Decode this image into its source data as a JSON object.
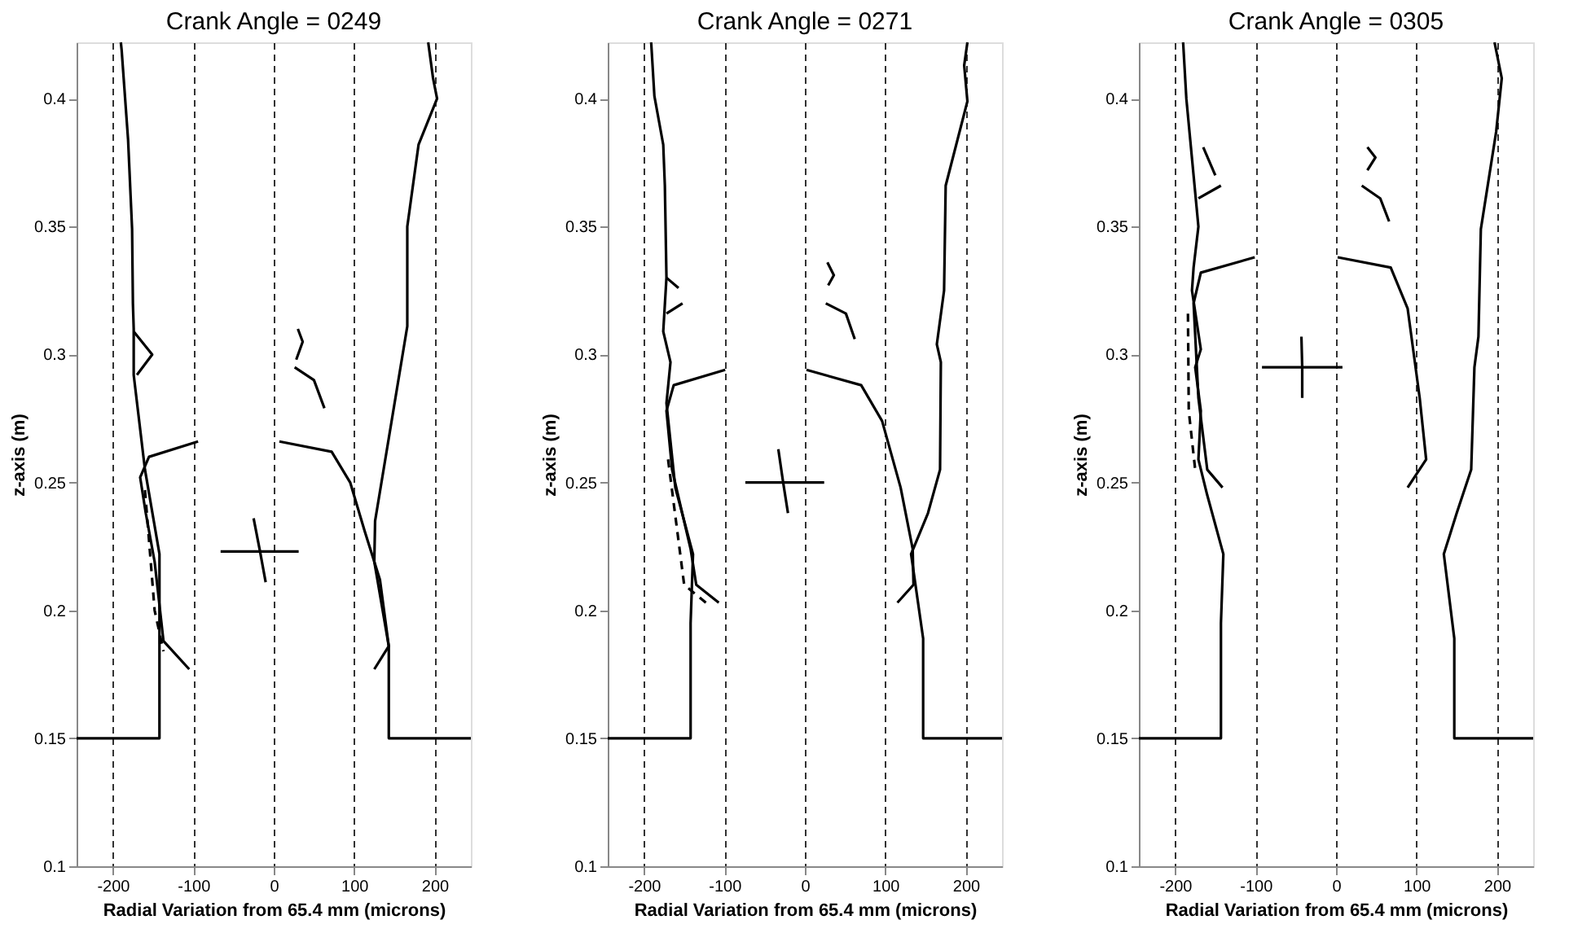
{
  "chart_data": [
    {
      "type": "line",
      "title": "Crank Angle = 0249",
      "xlabel": "Radial Variation from 65.4 mm (microns)",
      "ylabel": "z-axis (m)",
      "xlim": [
        -245,
        245
      ],
      "ylim": [
        0.1,
        0.422
      ],
      "xticks": [
        -200,
        -100,
        0,
        100,
        200
      ],
      "yticks": [
        0.1,
        0.15,
        0.2,
        0.25,
        0.3,
        0.35,
        0.4
      ],
      "grid": "x",
      "legend": false,
      "marker": "none",
      "series": [
        {
          "color": "#000000",
          "x": [
            -245,
            -142,
            -142,
            -160,
            -174,
            -174,
            -175,
            -176,
            -181,
            -189,
            -190
          ],
          "values": [
            0.15,
            0.15,
            0.222,
            0.255,
            0.292,
            0.31,
            0.32,
            0.349,
            0.384,
            0.419,
            0.422
          ]
        },
        {
          "color": "#000000",
          "x": [
            245,
            143,
            143,
            125,
            126,
            166,
            166,
            180,
            203,
            198,
            192
          ],
          "values": [
            0.15,
            0.15,
            0.186,
            0.219,
            0.235,
            0.311,
            0.35,
            0.382,
            0.4,
            0.408,
            0.422
          ]
        },
        {
          "color": "#000000",
          "x": [
            -94,
            -155,
            -166,
            -159,
            -148,
            -137,
            -105
          ],
          "values": [
            0.266,
            0.26,
            0.252,
            0.238,
            0.219,
            0.188,
            0.177
          ]
        },
        {
          "color": "#000000",
          "x": [
            7,
            72,
            95,
            113,
            132,
            143,
            125
          ],
          "values": [
            0.266,
            0.262,
            0.25,
            0.231,
            0.212,
            0.186,
            0.177
          ]
        },
        {
          "color": "#000000",
          "line_style": "dashed",
          "x": [
            -160,
            -148,
            -137
          ],
          "values": [
            0.247,
            0.2,
            0.184
          ]
        },
        {
          "color": "#000000",
          "x": [
            -174,
            -151,
            -170
          ],
          "values": [
            0.309,
            0.3,
            0.292
          ]
        },
        {
          "color": "#000000",
          "x": [
            30,
            36,
            28
          ],
          "values": [
            0.31,
            0.305,
            0.298
          ]
        },
        {
          "color": "#000000",
          "x": [
            26,
            50,
            63
          ],
          "values": [
            0.295,
            0.29,
            0.279
          ]
        },
        {
          "color": "#000000",
          "x": [
            -66,
            31
          ],
          "values": [
            0.223,
            0.223
          ]
        },
        {
          "color": "#000000",
          "x": [
            -25,
            -17,
            -10
          ],
          "values": [
            0.236,
            0.223,
            0.211
          ]
        }
      ]
    },
    {
      "type": "line",
      "title": "Crank Angle = 0271",
      "xlabel": "Radial Variation from 65.4 mm (microns)",
      "ylabel": "z-axis (m)",
      "xlim": [
        -245,
        245
      ],
      "ylim": [
        0.1,
        0.422
      ],
      "xticks": [
        -200,
        -100,
        0,
        100,
        200
      ],
      "yticks": [
        0.1,
        0.15,
        0.2,
        0.25,
        0.3,
        0.35,
        0.4
      ],
      "grid": "x",
      "legend": false,
      "marker": "none",
      "series": [
        {
          "color": "#000000",
          "x": [
            -245,
            -142,
            -142,
            -139,
            -161,
            -172,
            -167,
            -176,
            -172,
            -174,
            -176,
            -187,
            -191
          ],
          "values": [
            0.15,
            0.15,
            0.195,
            0.222,
            0.248,
            0.281,
            0.297,
            0.309,
            0.33,
            0.366,
            0.382,
            0.401,
            0.422
          ]
        },
        {
          "color": "#000000",
          "x": [
            245,
            147,
            147,
            132,
            153,
            168,
            169,
            164,
            173,
            175,
            202,
            198,
            202
          ],
          "values": [
            0.15,
            0.15,
            0.189,
            0.222,
            0.238,
            0.255,
            0.297,
            0.304,
            0.325,
            0.366,
            0.399,
            0.413,
            0.422
          ]
        },
        {
          "color": "#000000",
          "x": [
            -99,
            -163,
            -172,
            -165,
            -142,
            -135,
            -107
          ],
          "values": [
            0.294,
            0.288,
            0.278,
            0.255,
            0.224,
            0.21,
            0.203
          ]
        },
        {
          "color": "#000000",
          "x": [
            2,
            70,
            96,
            119,
            134,
            135,
            115
          ],
          "values": [
            0.294,
            0.288,
            0.274,
            0.248,
            0.224,
            0.21,
            0.203
          ]
        },
        {
          "color": "#000000",
          "line_style": "dashed",
          "x": [
            -170,
            -150,
            -123
          ],
          "values": [
            0.259,
            0.21,
            0.203
          ]
        },
        {
          "color": "#000000",
          "x": [
            -172,
            -157
          ],
          "values": [
            0.33,
            0.326
          ]
        },
        {
          "color": "#000000",
          "x": [
            -172,
            -152
          ],
          "values": [
            0.316,
            0.32
          ]
        },
        {
          "color": "#000000",
          "x": [
            28,
            36,
            29
          ],
          "values": [
            0.336,
            0.331,
            0.327
          ]
        },
        {
          "color": "#000000",
          "x": [
            26,
            51,
            62
          ],
          "values": [
            0.32,
            0.316,
            0.306
          ]
        },
        {
          "color": "#000000",
          "x": [
            -74,
            24
          ],
          "values": [
            0.25,
            0.25
          ]
        },
        {
          "color": "#000000",
          "x": [
            -33,
            -27,
            -21
          ],
          "values": [
            0.263,
            0.25,
            0.238
          ]
        }
      ]
    },
    {
      "type": "line",
      "title": "Crank Angle = 0305",
      "xlabel": "Radial Variation from 65.4 mm (microns)",
      "ylabel": "z-axis (m)",
      "xlim": [
        -245,
        245
      ],
      "ylim": [
        0.1,
        0.422
      ],
      "xticks": [
        -200,
        -100,
        0,
        100,
        200
      ],
      "yticks": [
        0.1,
        0.15,
        0.2,
        0.25,
        0.3,
        0.35,
        0.4
      ],
      "grid": "x",
      "legend": false,
      "marker": "none",
      "series": [
        {
          "color": "#000000",
          "x": [
            -245,
            -143,
            -143,
            -140,
            -160,
            -171,
            -168,
            -175,
            -168,
            -179,
            -177,
            -171,
            -186,
            -190
          ],
          "values": [
            0.15,
            0.15,
            0.195,
            0.222,
            0.245,
            0.259,
            0.278,
            0.295,
            0.302,
            0.325,
            0.334,
            0.35,
            0.4,
            0.422
          ]
        },
        {
          "color": "#000000",
          "x": [
            245,
            147,
            147,
            134,
            150,
            168,
            172,
            177,
            180,
            199,
            206,
            197
          ],
          "values": [
            0.15,
            0.15,
            0.189,
            0.222,
            0.238,
            0.255,
            0.295,
            0.307,
            0.349,
            0.387,
            0.408,
            0.422
          ]
        },
        {
          "color": "#000000",
          "x": [
            -101,
            -168,
            -177,
            -171,
            -160,
            -141
          ],
          "values": [
            0.338,
            0.332,
            0.32,
            0.283,
            0.255,
            0.248
          ]
        },
        {
          "color": "#000000",
          "x": [
            2,
            68,
            89,
            104,
            112,
            89
          ],
          "values": [
            0.338,
            0.334,
            0.318,
            0.283,
            0.259,
            0.248
          ]
        },
        {
          "color": "#000000",
          "line_style": "dashed",
          "x": [
            -184,
            -183,
            -175
          ],
          "values": [
            0.316,
            0.278,
            0.255
          ]
        },
        {
          "color": "#000000",
          "x": [
            -165,
            -150
          ],
          "values": [
            0.381,
            0.37
          ]
        },
        {
          "color": "#000000",
          "x": [
            -171,
            -143
          ],
          "values": [
            0.361,
            0.366
          ]
        },
        {
          "color": "#000000",
          "x": [
            39,
            49,
            39
          ],
          "values": [
            0.381,
            0.377,
            0.372
          ]
        },
        {
          "color": "#000000",
          "x": [
            32,
            55,
            66
          ],
          "values": [
            0.366,
            0.361,
            0.352
          ]
        },
        {
          "color": "#000000",
          "x": [
            -92,
            8
          ],
          "values": [
            0.295,
            0.295
          ]
        },
        {
          "color": "#000000",
          "x": [
            -43,
            -42,
            -42
          ],
          "values": [
            0.307,
            0.295,
            0.283
          ]
        }
      ]
    }
  ]
}
